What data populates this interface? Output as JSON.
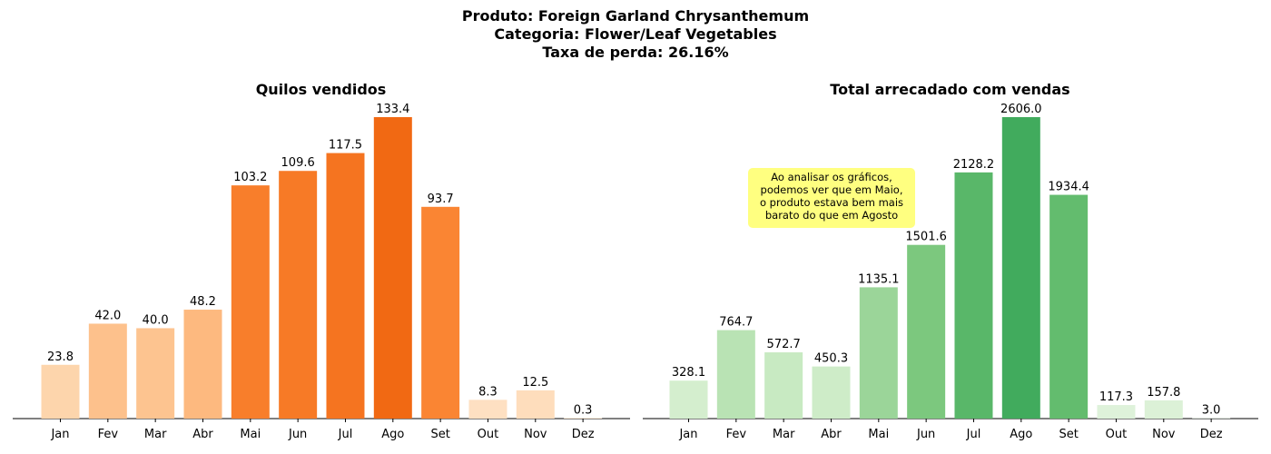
{
  "header": {
    "lines": [
      "Produto: Foreign Garland Chrysanthemum",
      "Categoria: Flower/Leaf Vegetables",
      "Taxa de perda: 26.16%"
    ]
  },
  "chart_data": [
    {
      "type": "bar",
      "title": "Quilos vendidos",
      "categories": [
        "Jan",
        "Fev",
        "Mar",
        "Abr",
        "Mai",
        "Jun",
        "Jul",
        "Ago",
        "Set",
        "Out",
        "Nov",
        "Dez"
      ],
      "values": [
        23.8,
        42.0,
        40.0,
        48.2,
        103.2,
        109.6,
        117.5,
        133.4,
        93.7,
        8.3,
        12.5,
        0.3
      ],
      "labels": [
        "23.8",
        "42.0",
        "40.0",
        "48.2",
        "103.2",
        "109.6",
        "117.5",
        "133.4",
        "93.7",
        "8.3",
        "12.5",
        "0.3"
      ],
      "colormap": "oranges",
      "yaxis_visible": false,
      "ylim": [
        0,
        133.4
      ]
    },
    {
      "type": "bar",
      "title": "Total arrecadado com vendas",
      "categories": [
        "Jan",
        "Fev",
        "Mar",
        "Abr",
        "Mai",
        "Jun",
        "Jul",
        "Ago",
        "Set",
        "Out",
        "Nov",
        "Dez"
      ],
      "values": [
        328.1,
        764.7,
        572.7,
        450.3,
        1135.1,
        1501.6,
        2128.2,
        2606.0,
        1934.4,
        117.3,
        157.8,
        3.0
      ],
      "labels": [
        "328.1",
        "764.7",
        "572.7",
        "450.3",
        "1135.1",
        "1501.6",
        "2128.2",
        "2606.0",
        "1934.4",
        "117.3",
        "157.8",
        "3.0"
      ],
      "colormap": "greens",
      "yaxis_visible": false,
      "ylim": [
        0,
        2606.0
      ],
      "annotation": {
        "lines": [
          "Ao analisar os gráficos,",
          "podemos ver que em Maio,",
          "o produto estava bem mais",
          "barato do que em Agosto"
        ],
        "background": "#ffff80"
      }
    }
  ]
}
